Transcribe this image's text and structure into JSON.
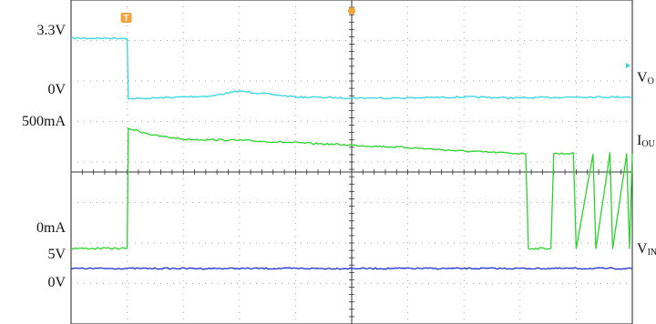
{
  "chart_data": {
    "type": "line",
    "title": "",
    "grid": true,
    "x_divisions": 10,
    "y_divisions": 8,
    "trigger_marker": "T",
    "y_labels_left": [
      {
        "text": "3.3V",
        "for": "VOUT"
      },
      {
        "text": "0V",
        "for": "VOUT"
      },
      {
        "text": "500mA",
        "for": "IOUT"
      },
      {
        "text": "0mA",
        "for": "IOUT"
      },
      {
        "text": "5V",
        "for": "VIN"
      },
      {
        "text": "0V",
        "for": "VIN"
      }
    ],
    "series": [
      {
        "name": "VOUT",
        "label_main": "V",
        "label_sub": "O",
        "color": "#35d6e4",
        "x": [
          0,
          1.0,
          1.02,
          2.5,
          3.0,
          4.0,
          5.0,
          6.0,
          7.0,
          8.0,
          9.0,
          10.0
        ],
        "y": [
          3.3,
          3.3,
          0.2,
          0.35,
          0.6,
          0.3,
          0.25,
          0.25,
          0.3,
          0.25,
          0.3,
          0.3
        ]
      },
      {
        "name": "IOUT",
        "label_main": "I",
        "label_sub": "OU",
        "color": "#2ad42a",
        "x": [
          0,
          1.0,
          1.02,
          1.5,
          2.0,
          3.0,
          4.0,
          5.0,
          6.0,
          7.0,
          8.0,
          8.1,
          8.15,
          8.55,
          8.6,
          8.95,
          9.0,
          9.3,
          9.35,
          9.6,
          9.65,
          9.9,
          9.95,
          10.0
        ],
        "y": [
          0,
          0,
          500,
          470,
          455,
          450,
          440,
          430,
          420,
          405,
          395,
          395,
          0,
          0,
          395,
          395,
          0,
          395,
          0,
          395,
          0,
          395,
          0,
          395
        ]
      },
      {
        "name": "VIN",
        "label_main": "V",
        "label_sub": "IN",
        "color": "#1e2fd6",
        "x": [
          0,
          10.0
        ],
        "y": [
          5,
          5
        ]
      }
    ]
  }
}
